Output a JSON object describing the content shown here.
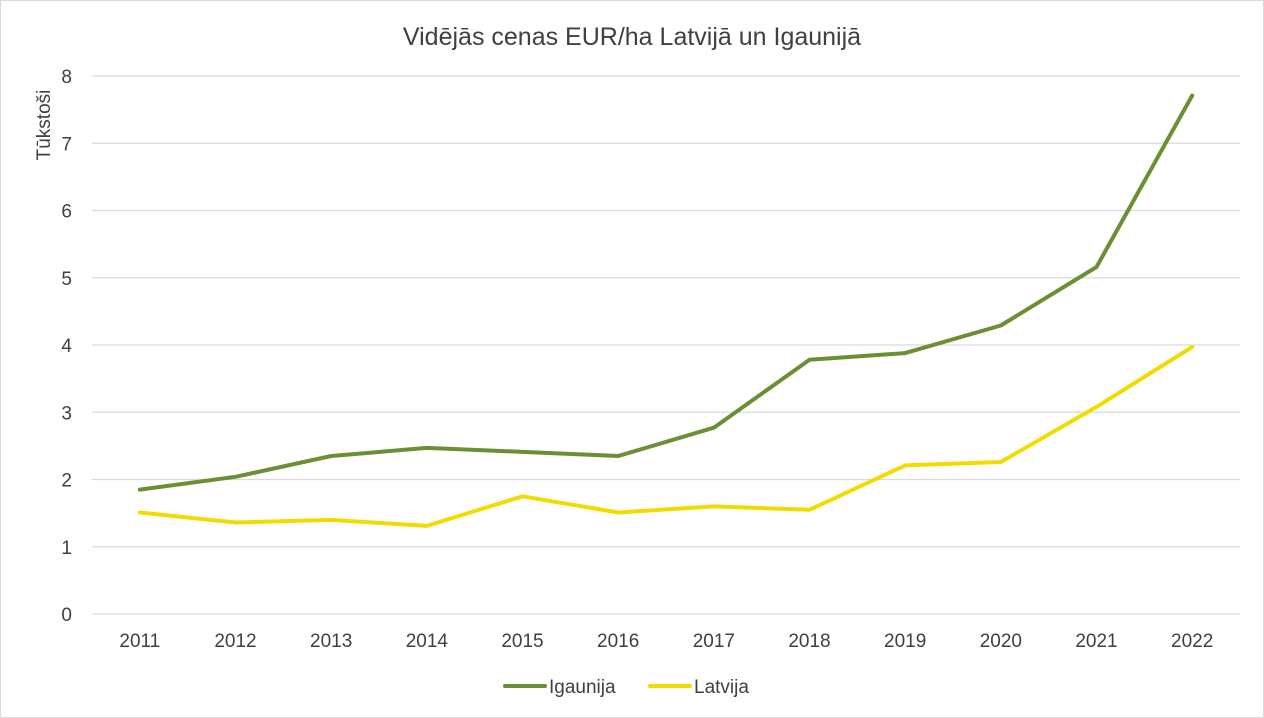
{
  "chart_data": {
    "type": "line",
    "title": "Vidējās cenas EUR/ha Latvijā un Igaunijā",
    "xlabel": "",
    "ylabel": "Tūkstoši",
    "categories": [
      "2011",
      "2012",
      "2013",
      "2014",
      "2015",
      "2016",
      "2017",
      "2018",
      "2019",
      "2020",
      "2021",
      "2022"
    ],
    "ylim": [
      0,
      8
    ],
    "yticks": [
      0,
      1,
      2,
      3,
      4,
      5,
      6,
      7,
      8
    ],
    "grid": true,
    "legend_position": "bottom",
    "series": [
      {
        "name": "Igaunija",
        "color": "#6a8f35",
        "values": [
          1.85,
          2.04,
          2.35,
          2.47,
          2.41,
          2.35,
          2.77,
          3.78,
          3.88,
          4.29,
          5.16,
          7.71
        ]
      },
      {
        "name": "Latvija",
        "color": "#f2dc00",
        "values": [
          1.51,
          1.36,
          1.4,
          1.31,
          1.75,
          1.51,
          1.6,
          1.55,
          2.21,
          2.26,
          3.08,
          3.97
        ]
      }
    ]
  }
}
